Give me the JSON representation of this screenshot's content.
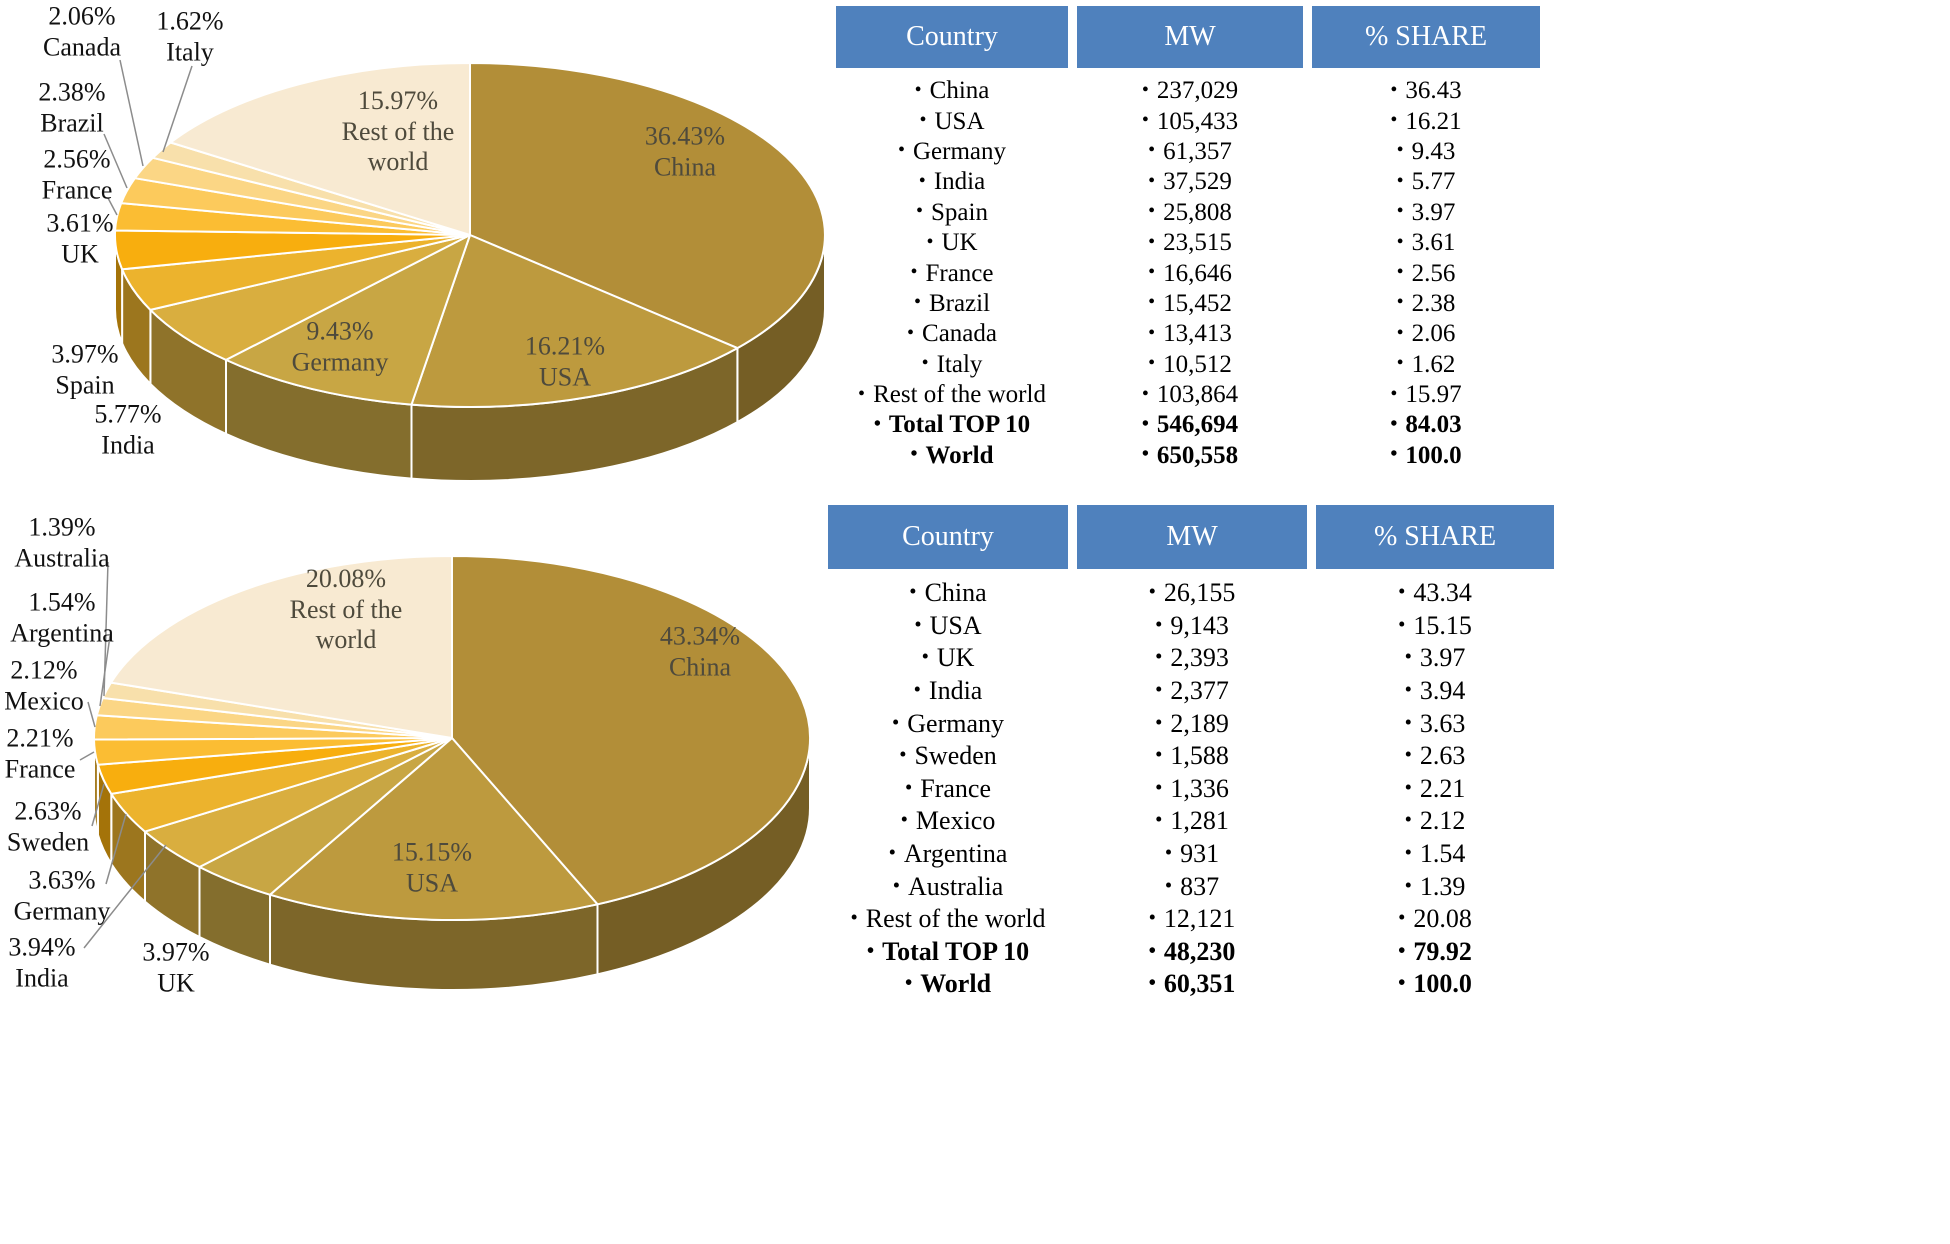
{
  "theme": {
    "header_bg": "#4f81bd",
    "header_text": "#ffffff",
    "label_internal": "#4e4a3c",
    "label_external": "#111111",
    "leader_line": "#8c8c8c"
  },
  "chart_data": [
    {
      "type": "pie",
      "title": "",
      "style": "3d",
      "legend_position": "none",
      "categories": [
        "China",
        "USA",
        "Germany",
        "India",
        "Spain",
        "UK",
        "France",
        "Brazil",
        "Canada",
        "Italy",
        "Rest of the world"
      ],
      "values": [
        36.43,
        16.21,
        9.43,
        5.77,
        3.97,
        3.61,
        2.56,
        2.38,
        2.06,
        1.62,
        15.97
      ],
      "unit": "%",
      "colors": [
        "#b28e38",
        "#bd9a3e",
        "#c8a644",
        "#d9ae3f",
        "#ecb32d",
        "#f8ae0e",
        "#fbbd33",
        "#fcca5c",
        "#fbd685",
        "#f8e0ab",
        "#f8ead2"
      ]
    },
    {
      "type": "pie",
      "title": "",
      "style": "3d",
      "legend_position": "none",
      "categories": [
        "China",
        "USA",
        "UK",
        "India",
        "Germany",
        "Sweden",
        "France",
        "Mexico",
        "Argentina",
        "Australia",
        "Rest of the world"
      ],
      "values": [
        43.34,
        15.15,
        3.97,
        3.94,
        3.63,
        2.63,
        2.21,
        2.12,
        1.54,
        1.39,
        20.08
      ],
      "unit": "%",
      "colors": [
        "#b28e38",
        "#bd9a3e",
        "#c8a644",
        "#d9ae3f",
        "#ecb32d",
        "#f8ae0e",
        "#fbbd33",
        "#fcca5c",
        "#fbd685",
        "#f8e0ab",
        "#f8ead2"
      ]
    },
    {
      "type": "table",
      "headers": [
        "Country",
        "MW",
        "% SHARE"
      ],
      "rows": [
        [
          "China",
          "237,029",
          "36.43"
        ],
        [
          "USA",
          "105,433",
          "16.21"
        ],
        [
          "Germany",
          "61,357",
          "9.43"
        ],
        [
          "India",
          "37,529",
          "5.77"
        ],
        [
          "Spain",
          "25,808",
          "3.97"
        ],
        [
          "UK",
          "23,515",
          "3.61"
        ],
        [
          "France",
          "16,646",
          "2.56"
        ],
        [
          "Brazil",
          "15,452",
          "2.38"
        ],
        [
          "Canada",
          "13,413",
          "2.06"
        ],
        [
          "Italy",
          "10,512",
          "1.62"
        ],
        [
          "Rest of the world",
          "103,864",
          "15.97"
        ],
        [
          "Total TOP 10",
          "546,694",
          "84.03"
        ],
        [
          "World",
          "650,558",
          "100.0"
        ]
      ],
      "bold_rows": [
        11,
        12
      ]
    },
    {
      "type": "table",
      "headers": [
        "Country",
        "MW",
        "% SHARE"
      ],
      "rows": [
        [
          "China",
          "26,155",
          "43.34"
        ],
        [
          "USA",
          "9,143",
          "15.15"
        ],
        [
          "UK",
          "2,393",
          "3.97"
        ],
        [
          "India",
          "2,377",
          "3.94"
        ],
        [
          "Germany",
          "2,189",
          "3.63"
        ],
        [
          "Sweden",
          "1,588",
          "2.63"
        ],
        [
          "France",
          "1,336",
          "2.21"
        ],
        [
          "Mexico",
          "1,281",
          "2.12"
        ],
        [
          "Argentina",
          "931",
          "1.54"
        ],
        [
          "Australia",
          "837",
          "1.39"
        ],
        [
          "Rest of the world",
          "12,121",
          "20.08"
        ],
        [
          "Total TOP 10",
          "48,230",
          "79.92"
        ],
        [
          "World",
          "60,351",
          "100.0"
        ]
      ],
      "bold_rows": [
        11,
        12
      ]
    }
  ]
}
